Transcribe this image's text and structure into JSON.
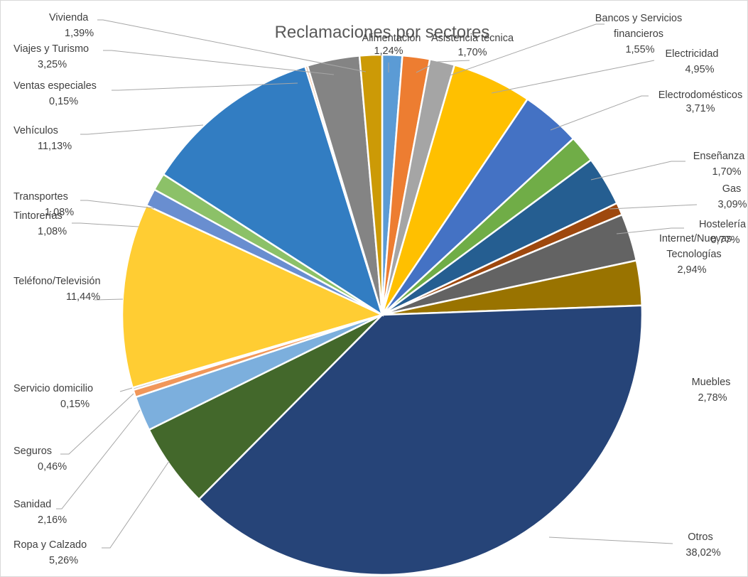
{
  "chart_data": {
    "type": "pie",
    "title": "Reclamaciones por sectores",
    "slices": [
      {
        "name": "Alimentación",
        "label": "1,24%",
        "value": 1.24,
        "color": "#5b9bd5"
      },
      {
        "name": "Asistencia técnica",
        "label": "1,70%",
        "value": 1.7,
        "color": "#ed7d31"
      },
      {
        "name": "Bancos y Servicios financieros",
        "label": "1,55%",
        "value": 1.55,
        "color": "#a5a5a5"
      },
      {
        "name": "Electricidad",
        "label": "4,95%",
        "value": 4.95,
        "color": "#ffc000"
      },
      {
        "name": "Electrodomésticos",
        "label": "3,71%",
        "value": 3.71,
        "color": "#4472c4"
      },
      {
        "name": "Enseñanza",
        "label": "1,70%",
        "value": 1.7,
        "color": "#70ad47"
      },
      {
        "name": "Gas",
        "label": "3,09%",
        "value": 3.09,
        "color": "#255e91"
      },
      {
        "name": "Hostelería",
        "label": "0,77%",
        "value": 0.77,
        "color": "#9e480e"
      },
      {
        "name": "Internet/Nuevas Tecnologías",
        "label": "2,94%",
        "value": 2.94,
        "color": "#636363"
      },
      {
        "name": "Muebles",
        "label": "2,78%",
        "value": 2.78,
        "color": "#997300"
      },
      {
        "name": "Otros",
        "label": "38,02%",
        "value": 38.02,
        "color": "#264478"
      },
      {
        "name": "Ropa y Calzado",
        "label": "5,26%",
        "value": 5.26,
        "color": "#43682b"
      },
      {
        "name": "Sanidad",
        "label": "2,16%",
        "value": 2.16,
        "color": "#7cafdd"
      },
      {
        "name": "Seguros",
        "label": "0,46%",
        "value": 0.46,
        "color": "#f1975a"
      },
      {
        "name": "Servicio domicilio",
        "label": "0,15%",
        "value": 0.15,
        "color": "#b7b7b7"
      },
      {
        "name": "Teléfono/Televisión",
        "label": "11,44%",
        "value": 11.44,
        "color": "#ffcd33"
      },
      {
        "name": "Tintorerías",
        "label": "1,08%",
        "value": 1.08,
        "color": "#698ed0"
      },
      {
        "name": "Transportes",
        "label": "1,08%",
        "value": 1.08,
        "color": "#8cc168"
      },
      {
        "name": "Vehículos",
        "label": "11,13%",
        "value": 11.13,
        "color": "#327dc2"
      },
      {
        "name": "Ventas especiales",
        "label": "0,15%",
        "value": 0.15,
        "color": "#f4b183"
      },
      {
        "name": "Viajes y Turismo",
        "label": "3,25%",
        "value": 3.25,
        "color": "#848484"
      },
      {
        "name": "Vivienda",
        "label": "1,39%",
        "value": 1.39,
        "color": "#cc9a06"
      }
    ]
  }
}
